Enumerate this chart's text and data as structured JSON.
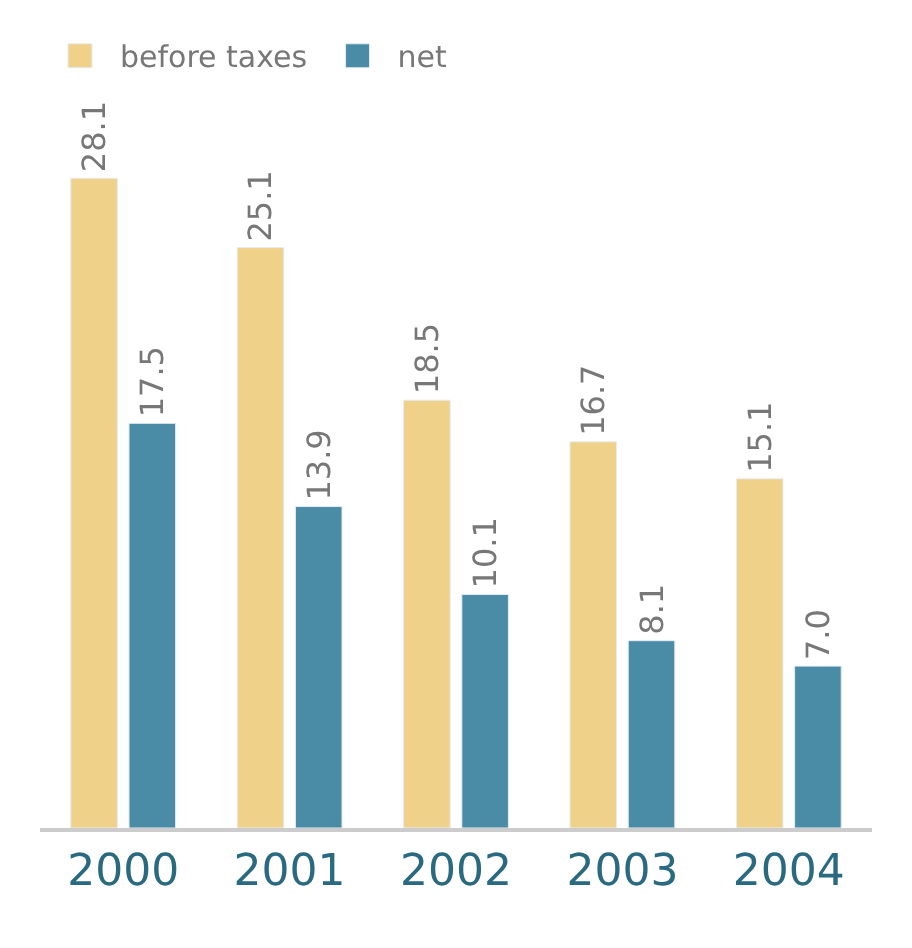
{
  "chart_data": {
    "type": "bar",
    "categories": [
      "2000",
      "2001",
      "2002",
      "2003",
      "2004"
    ],
    "series": [
      {
        "name": "before taxes",
        "color": "#efd18a",
        "values": [
          28.1,
          25.1,
          18.5,
          16.7,
          15.1
        ],
        "value_labels": [
          "28.1",
          "25.1",
          "18.5",
          "16.7",
          "15.1"
        ]
      },
      {
        "name": "net",
        "color": "#4a8ca6",
        "values": [
          17.5,
          13.9,
          10.1,
          8.1,
          7.0
        ],
        "value_labels": [
          "17.5",
          "13.9",
          "10.1",
          "8.1",
          "7.0"
        ]
      }
    ],
    "legend": "top left"
  }
}
